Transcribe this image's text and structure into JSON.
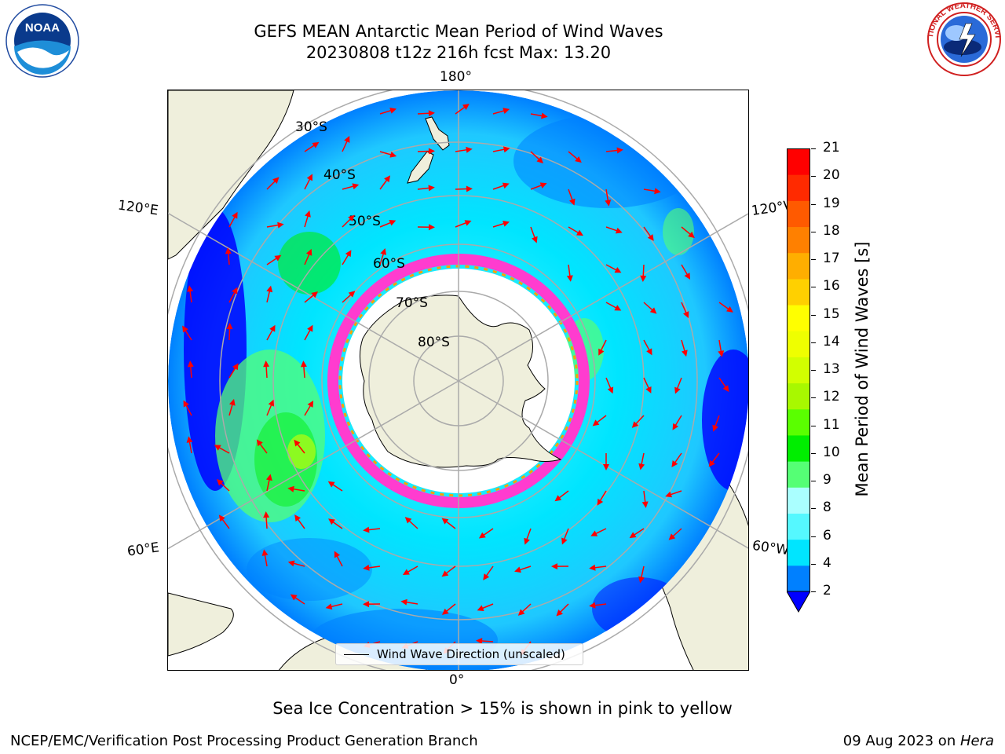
{
  "header": {
    "title_line1": "GEFS MEAN Antarctic Mean Period of Wind Waves",
    "title_line2": "20230808 t12z 216h fcst   Max: 13.20"
  },
  "map": {
    "projection": "south polar stereographic",
    "lon_labels": {
      "top": "180°",
      "bottom": "0°",
      "upper_left": "120°E",
      "lower_left": "60°E",
      "upper_right": "120°W",
      "lower_right": "60°W"
    },
    "lat_labels": [
      "30°S",
      "40°S",
      "50°S",
      "60°S",
      "70°S",
      "80°S"
    ],
    "legend_label": "Wind Wave Direction (unscaled)",
    "arrow_color": "#ff0000",
    "land_color": "#efefdc",
    "ice_colors": [
      "#ff3ccf",
      "#ffa000",
      "#ffff00"
    ]
  },
  "colorbar": {
    "label": "Mean Period of Wind Waves [s]",
    "ticks": [
      "2",
      "4",
      "6",
      "8",
      "9",
      "10",
      "11",
      "12",
      "13",
      "14",
      "15",
      "16",
      "17",
      "18",
      "19",
      "20",
      "21"
    ],
    "colors": [
      "#0000ff",
      "#0080ff",
      "#00e5ff",
      "#55f8ff",
      "#aaffff",
      "#55ff75",
      "#00ee00",
      "#5aff00",
      "#a8f800",
      "#d2ff00",
      "#efff00",
      "#ffff00",
      "#ffd000",
      "#ffae00",
      "#ff8000",
      "#ff5a00",
      "#ff2a00",
      "#ff0000"
    ],
    "extend_color": "#0000ff"
  },
  "note": "Sea Ice Concentration > 15% is shown in pink to yellow",
  "footer": {
    "left": "NCEP/EMC/Verification Post Processing Product Generation Branch",
    "right_date": "09 Aug 2023 on ",
    "right_machine": "Hera"
  },
  "logos": {
    "noaa_text": "NOAA",
    "nws_text": "NATIONAL WEATHER SERVICE"
  }
}
